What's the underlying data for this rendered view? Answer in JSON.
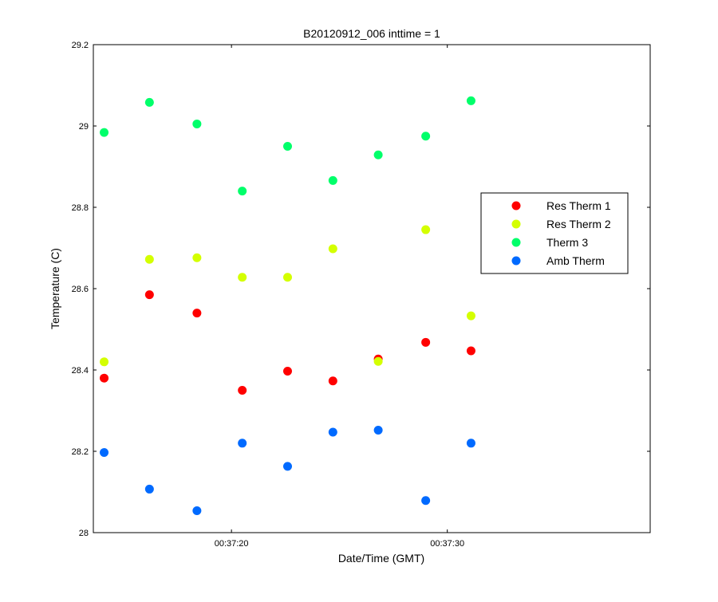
{
  "chart_data": {
    "type": "scatter",
    "title": "B20120912_006 inttime = 1",
    "xlabel": "Date/Time (GMT)",
    "ylabel": "Temperature (C)",
    "x_unit": "HH:MM:SS",
    "xlim": [
      "00:37:13.6",
      "00:37:39.4"
    ],
    "ylim": [
      28,
      29.2
    ],
    "x_ticks": [
      "00:37:20",
      "00:37:30"
    ],
    "y_ticks": [
      "28",
      "28.2",
      "28.4",
      "28.6",
      "28.8",
      "29",
      "29.2"
    ],
    "grid": false,
    "legend_position": "right",
    "x": [
      "00:37:14.1",
      "00:37:16.2",
      "00:37:18.4",
      "00:37:20.5",
      "00:37:22.6",
      "00:37:24.7",
      "00:37:26.8",
      "00:37:29.0",
      "00:37:31.1"
    ],
    "series": [
      {
        "name": "Res Therm 1",
        "color": "#ff0000",
        "values": [
          28.38,
          28.585,
          28.54,
          28.35,
          28.397,
          28.373,
          28.427,
          28.468,
          28.447
        ]
      },
      {
        "name": "Res Therm 2",
        "color": "#d4ff00",
        "values": [
          28.42,
          28.672,
          28.676,
          28.628,
          28.628,
          28.698,
          28.421,
          28.745,
          28.533
        ]
      },
      {
        "name": "Therm 3",
        "color": "#00ff6a",
        "values": [
          28.984,
          29.058,
          29.005,
          28.84,
          28.95,
          28.866,
          28.929,
          28.975,
          29.062
        ]
      },
      {
        "name": "Amb Therm",
        "color": "#006aff",
        "values": [
          28.197,
          28.107,
          28.054,
          28.22,
          28.163,
          28.247,
          28.252,
          28.079,
          28.22
        ]
      }
    ]
  }
}
